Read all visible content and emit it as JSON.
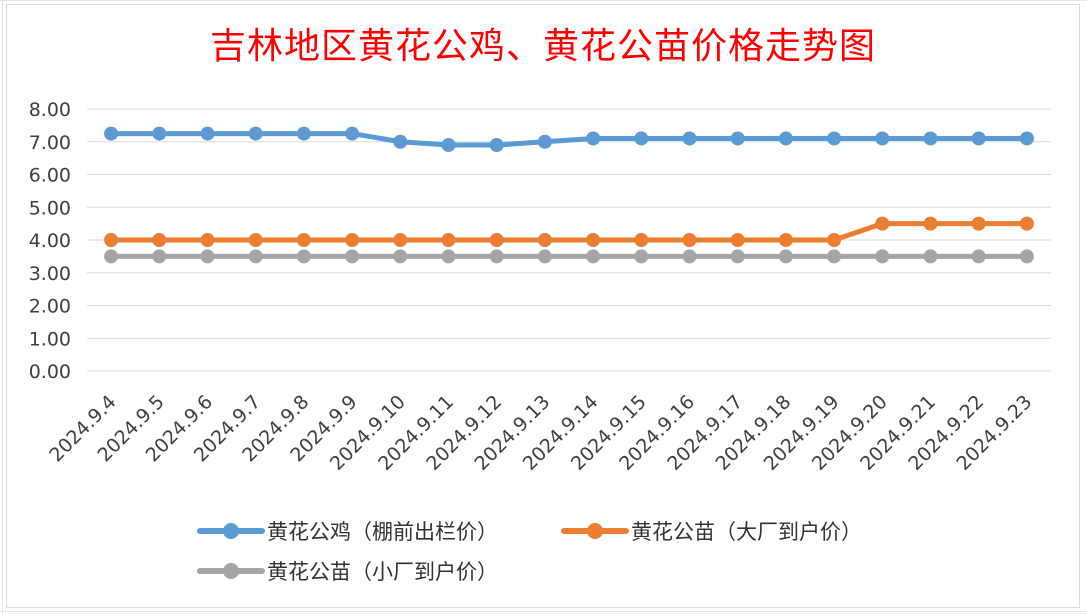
{
  "chart_data": {
    "type": "line",
    "title": "吉林地区黄花公鸡、黄花公苗价格走势图",
    "categories": [
      "2024.9.4",
      "2024.9.5",
      "2024.9.6",
      "2024.9.7",
      "2024.9.8",
      "2024.9.9",
      "2024.9.10",
      "2024.9.11",
      "2024.9.12",
      "2024.9.13",
      "2024.9.14",
      "2024.9.15",
      "2024.9.16",
      "2024.9.17",
      "2024.9.18",
      "2024.9.19",
      "2024.9.20",
      "2024.9.21",
      "2024.9.22",
      "2024.9.23"
    ],
    "series": [
      {
        "name": "黄花公鸡（棚前出栏价）",
        "color": "#5b9bd5",
        "values": [
          7.25,
          7.25,
          7.25,
          7.25,
          7.25,
          7.25,
          7.0,
          6.9,
          6.9,
          7.0,
          7.1,
          7.1,
          7.1,
          7.1,
          7.1,
          7.1,
          7.1,
          7.1,
          7.1,
          7.1
        ]
      },
      {
        "name": "黄花公苗（大厂到户价）",
        "color": "#ed7d31",
        "values": [
          4.0,
          4.0,
          4.0,
          4.0,
          4.0,
          4.0,
          4.0,
          4.0,
          4.0,
          4.0,
          4.0,
          4.0,
          4.0,
          4.0,
          4.0,
          4.0,
          4.5,
          4.5,
          4.5,
          4.5
        ]
      },
      {
        "name": "黄花公苗（小厂到户价）",
        "color": "#a5a5a5",
        "values": [
          3.5,
          3.5,
          3.5,
          3.5,
          3.5,
          3.5,
          3.5,
          3.5,
          3.5,
          3.5,
          3.5,
          3.5,
          3.5,
          3.5,
          3.5,
          3.5,
          3.5,
          3.5,
          3.5,
          3.5
        ]
      }
    ],
    "yticks": [
      "0.00",
      "1.00",
      "2.00",
      "3.00",
      "4.00",
      "5.00",
      "6.00",
      "7.00",
      "8.00"
    ],
    "ylim": [
      0,
      8
    ],
    "grid": true,
    "legend_position": "bottom",
    "xlabel": "",
    "ylabel": ""
  }
}
